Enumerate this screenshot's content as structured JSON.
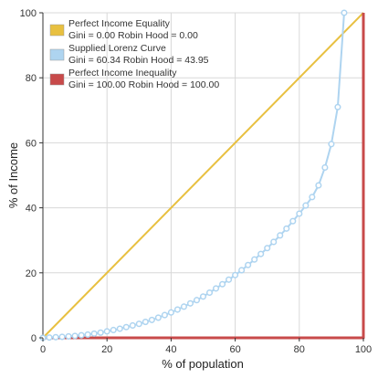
{
  "chart_data": {
    "type": "line",
    "title": "",
    "xlabel": "% of population",
    "ylabel": "% of Income",
    "xlim": [
      0,
      100
    ],
    "ylim": [
      0,
      100
    ],
    "x_ticks": [
      0,
      20,
      40,
      60,
      80,
      100
    ],
    "y_ticks": [
      0,
      20,
      40,
      60,
      80,
      100
    ],
    "grid": true,
    "legend_position": "top-left",
    "series": [
      {
        "name": "Perfect Income Equality",
        "stats_label": "Gini = 0.00 Robin Hood = 0.00",
        "color": "#e8c040",
        "markers": false,
        "points": [
          [
            0,
            0
          ],
          [
            100,
            100
          ]
        ]
      },
      {
        "name": "Supplied Lorenz Curve",
        "stats_label": "Gini = 60.34 Robin Hood = 43.95",
        "color": "#aed4f0",
        "markers": true,
        "points": [
          [
            0,
            0
          ],
          [
            2,
            0.1
          ],
          [
            4,
            0.2
          ],
          [
            6,
            0.3
          ],
          [
            8,
            0.45
          ],
          [
            10,
            0.6
          ],
          [
            12,
            0.8
          ],
          [
            14,
            1.0
          ],
          [
            16,
            1.3
          ],
          [
            18,
            1.6
          ],
          [
            20,
            2.0
          ],
          [
            22,
            2.4
          ],
          [
            24,
            2.8
          ],
          [
            26,
            3.3
          ],
          [
            28,
            3.8
          ],
          [
            30,
            4.3
          ],
          [
            32,
            4.9
          ],
          [
            34,
            5.5
          ],
          [
            36,
            6.2
          ],
          [
            38,
            7.0
          ],
          [
            40,
            7.8
          ],
          [
            42,
            8.7
          ],
          [
            44,
            9.6
          ],
          [
            46,
            10.6
          ],
          [
            48,
            11.6
          ],
          [
            50,
            12.7
          ],
          [
            52,
            13.9
          ],
          [
            54,
            15.2
          ],
          [
            56,
            16.5
          ],
          [
            58,
            17.9
          ],
          [
            60,
            19.3
          ],
          [
            62,
            20.8
          ],
          [
            64,
            22.4
          ],
          [
            66,
            24.1
          ],
          [
            68,
            25.8
          ],
          [
            70,
            27.6
          ],
          [
            72,
            29.5
          ],
          [
            74,
            31.5
          ],
          [
            76,
            33.6
          ],
          [
            78,
            35.9
          ],
          [
            80,
            38.2
          ],
          [
            82,
            40.7
          ],
          [
            84,
            43.3
          ],
          [
            86,
            46.9
          ],
          [
            88,
            52.4
          ],
          [
            90,
            59.6
          ],
          [
            92,
            71.0
          ],
          [
            94,
            100
          ]
        ]
      },
      {
        "name": "Perfect Income Inequality",
        "stats_label": "Gini = 100.00 Robin Hood = 100.00",
        "color": "#c84a4a",
        "markers": false,
        "points": [
          [
            0,
            0
          ],
          [
            100,
            0
          ],
          [
            100,
            100
          ]
        ]
      }
    ]
  }
}
